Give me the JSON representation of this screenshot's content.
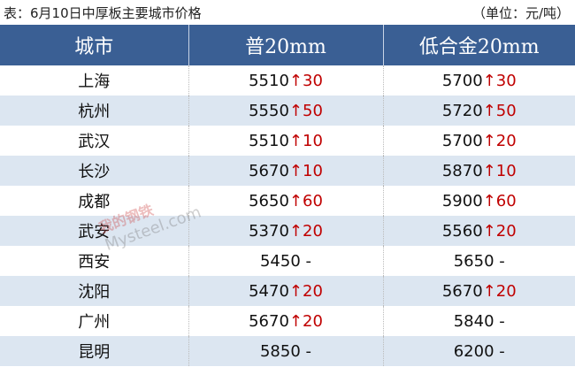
{
  "title": "表：6月10日中厚板主要城市价格",
  "unit": "（单位：元/吨）",
  "headers": [
    "城市",
    "普20mm",
    "低合金20mm"
  ],
  "rows": [
    {
      "city": "上海",
      "p": "5510",
      "pc": "↑30",
      "l": "5700",
      "lc": "↑30"
    },
    {
      "city": "杭州",
      "p": "5550",
      "pc": "↑50",
      "l": "5720",
      "lc": "↑50"
    },
    {
      "city": "武汉",
      "p": "5510",
      "pc": "↑10",
      "l": "5700",
      "lc": "↑20"
    },
    {
      "city": "长沙",
      "p": "5670",
      "pc": "↑10",
      "l": "5870",
      "lc": "↑10"
    },
    {
      "city": "成都",
      "p": "5650",
      "pc": "↑60",
      "l": "5900",
      "lc": "↑60"
    },
    {
      "city": "武安",
      "p": "5370",
      "pc": "↑20",
      "l": "5560",
      "lc": "↑20"
    },
    {
      "city": "西安",
      "p": "5450",
      "pc": " -",
      "l": "5650",
      "lc": " -"
    },
    {
      "city": "沈阳",
      "p": "5470",
      "pc": "↑20",
      "l": "5670",
      "lc": "↑20"
    },
    {
      "city": "广州",
      "p": "5670",
      "pc": "↑20",
      "l": "5840",
      "lc": " -"
    },
    {
      "city": "昆明",
      "p": "5850",
      "pc": " -",
      "l": "6200",
      "lc": " -"
    }
  ],
  "watermark": {
    "cn": "我的钢铁",
    "en": "Mysteel.com"
  },
  "colors": {
    "header": "#3a5f94",
    "alt_row": "#dce6f1",
    "up": "#c00000"
  }
}
